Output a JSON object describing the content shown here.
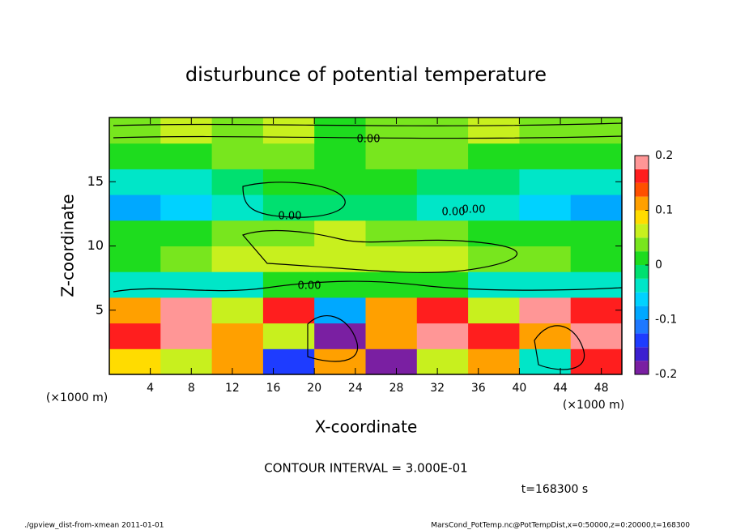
{
  "chart_data": {
    "type": "heatmap",
    "title": "disturbunce of potential temperature",
    "x_label": "X-coordinate",
    "y_label": "Z-coordinate",
    "x_unit": "(×1000 m)",
    "y_unit": "(×1000 m)",
    "x": [
      2.5,
      7.5,
      12.5,
      17.5,
      22.5,
      27.5,
      32.5,
      37.5,
      42.5,
      47.5
    ],
    "y": [
      1,
      3,
      5,
      7,
      9,
      11,
      13,
      15,
      17,
      19
    ],
    "values": [
      [
        0.08,
        0.05,
        0.12,
        -0.15,
        0.1,
        -0.2,
        0.05,
        0.1,
        -0.05,
        0.15
      ],
      [
        0.15,
        0.2,
        0.1,
        0.05,
        -0.2,
        0.1,
        0.2,
        0.15,
        0.12,
        0.2
      ],
      [
        0.12,
        0.18,
        0.05,
        0.15,
        -0.1,
        0.1,
        0.15,
        0.05,
        0.2,
        0.15
      ],
      [
        -0.05,
        -0.03,
        -0.04,
        0,
        0.02,
        0.02,
        0,
        -0.03,
        -0.04,
        -0.05
      ],
      [
        0.02,
        0.04,
        0.05,
        0.06,
        0.07,
        0.06,
        0.05,
        0.04,
        0.03,
        0.02
      ],
      [
        0,
        0.02,
        0.03,
        0.04,
        0.05,
        0.04,
        0.03,
        0.02,
        0.01,
        0
      ],
      [
        -0.08,
        -0.06,
        -0.03,
        -0.02,
        -0.01,
        -0.02,
        -0.03,
        -0.05,
        -0.07,
        -0.08
      ],
      [
        -0.04,
        -0.03,
        -0.02,
        0.01,
        0.02,
        0.01,
        -0.01,
        -0.02,
        -0.03,
        -0.04
      ],
      [
        0.02,
        0.02,
        0.03,
        0.03,
        0.02,
        0.03,
        0.03,
        0.02,
        0.02,
        0.02
      ],
      [
        0.03,
        0.05,
        0.04,
        0.06,
        0.02,
        0.03,
        0.04,
        0.05,
        0.03,
        0.04
      ]
    ],
    "xlim": [
      0,
      50
    ],
    "ylim": [
      0,
      20
    ],
    "xticks": [
      4,
      8,
      12,
      16,
      20,
      24,
      28,
      32,
      36,
      40,
      44,
      48
    ],
    "yticks": [
      5,
      10,
      15
    ],
    "colorbar": {
      "levels": [
        -0.2,
        -0.175,
        -0.15,
        -0.125,
        -0.1,
        -0.075,
        -0.05,
        -0.025,
        0,
        0.025,
        0.05,
        0.075,
        0.1,
        0.125,
        0.15,
        0.175,
        0.2
      ],
      "colors": [
        "#7a1fa2",
        "#3b1fd0",
        "#1e3cff",
        "#1e78ff",
        "#00a8ff",
        "#00d2ff",
        "#00e6c8",
        "#00e070",
        "#1edc1e",
        "#78e61e",
        "#c8f01e",
        "#ffdc00",
        "#ffa000",
        "#ff5000",
        "#ff1e1e",
        "#ff9696"
      ],
      "ticks": [
        -0.2,
        -0.1,
        0,
        0.1,
        0.2
      ]
    },
    "contour_labels": [
      "0.00",
      "0.00",
      "0.00",
      "0.00",
      "0.00"
    ],
    "annotation": "CONTOUR INTERVAL = 3.000E-01",
    "time_label": "t=168300 s",
    "footer_left": "./gpview_dist-from-xmean  2011-01-01",
    "footer_right": "MarsCond_PotTemp.nc@PotTempDist,x=0:50000,z=0:20000,t=168300"
  }
}
